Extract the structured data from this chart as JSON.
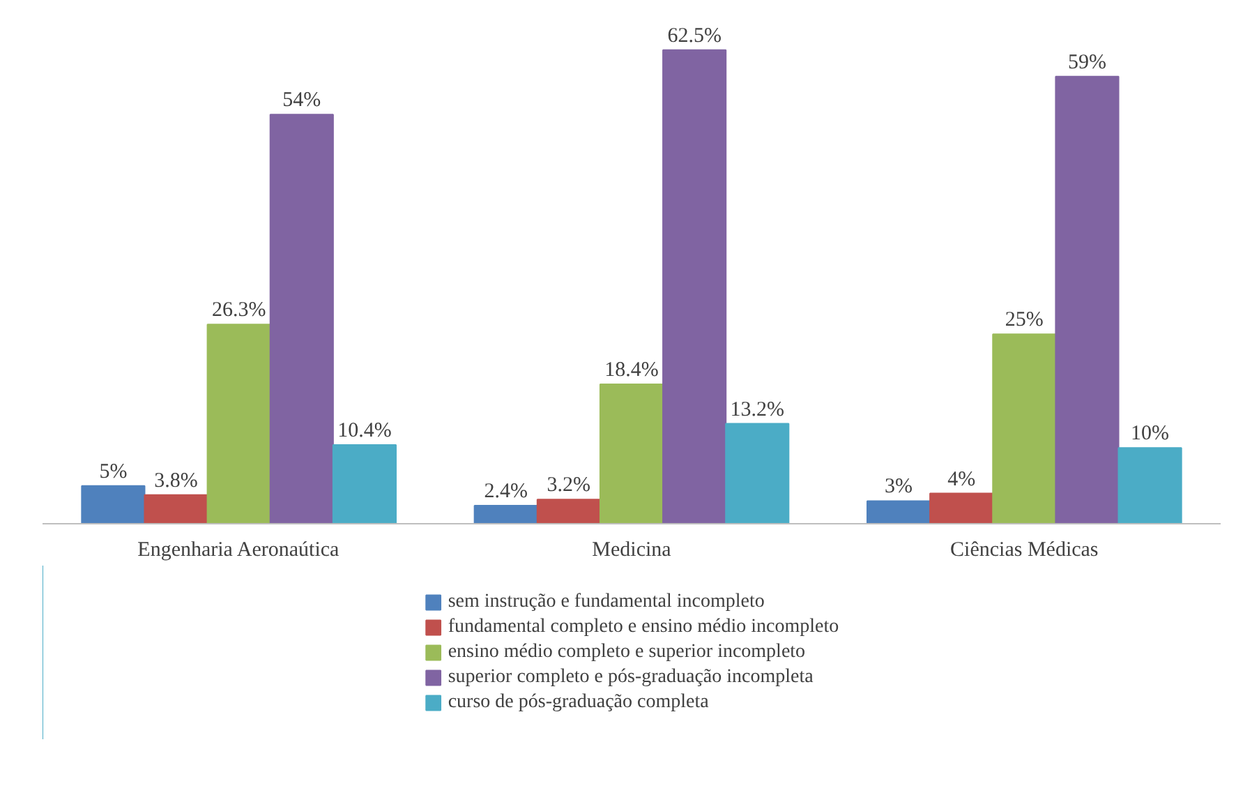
{
  "chart_data": {
    "type": "bar",
    "categories": [
      "Engenharia Aeronaútica",
      "Medicina",
      "Ciências Médicas"
    ],
    "series": [
      {
        "name": "sem instrução e fundamental incompleto",
        "color": "#4f81bd",
        "values": [
          5,
          2.4,
          3
        ],
        "value_labels": [
          "5%",
          "2.4%",
          "3%"
        ]
      },
      {
        "name": "fundamental completo e ensino médio incompleto",
        "color": "#c0504d",
        "values": [
          3.8,
          3.2,
          4
        ],
        "value_labels": [
          "3.8%",
          "3.2%",
          "4%"
        ]
      },
      {
        "name": "ensino médio completo e superior incompleto",
        "color": "#9bbb59",
        "values": [
          26.3,
          18.4,
          25
        ],
        "value_labels": [
          "26.3%",
          "18.4%",
          "25%"
        ]
      },
      {
        "name": "superior completo e pós-graduação incompleta",
        "color": "#8064a2",
        "values": [
          54,
          62.5,
          59
        ],
        "value_labels": [
          "54%",
          "62.5%",
          "59%"
        ]
      },
      {
        "name": "curso de pós-graduação completa",
        "color": "#4bacc6",
        "values": [
          10.4,
          13.2,
          10
        ],
        "value_labels": [
          "10.4%",
          "13.2%",
          "10%"
        ]
      }
    ],
    "legend": "bottom"
  }
}
